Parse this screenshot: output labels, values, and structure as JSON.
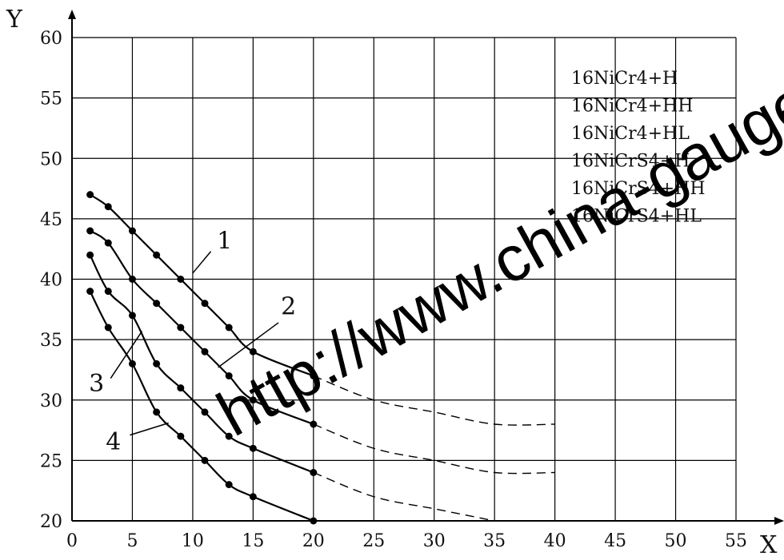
{
  "chart_data": {
    "type": "line",
    "title": "",
    "xlabel": "X",
    "ylabel": "Y",
    "xlim": [
      0,
      55
    ],
    "ylim": [
      20,
      60
    ],
    "xticks": [
      0,
      5,
      10,
      15,
      20,
      25,
      30,
      35,
      40,
      45,
      50,
      55
    ],
    "yticks": [
      20,
      25,
      30,
      35,
      40,
      45,
      50,
      55,
      60
    ],
    "grid": true,
    "legend": {
      "placement": "top-right",
      "entries": [
        "16NiCr4+H",
        "16NiCr4+HH",
        "16NiCr4+HL",
        "16NiCrS4+H",
        "16NiCrS4+HH",
        "16NiCrS4+HL"
      ]
    },
    "series": [
      {
        "label": "1",
        "points": [
          [
            1.5,
            47
          ],
          [
            3,
            46
          ],
          [
            5,
            44
          ],
          [
            7,
            42
          ],
          [
            9,
            40
          ],
          [
            11,
            38
          ],
          [
            13,
            36
          ],
          [
            15,
            34
          ],
          [
            20,
            32
          ]
        ],
        "extension": [
          [
            20,
            32
          ],
          [
            25,
            30
          ],
          [
            30,
            29
          ],
          [
            35,
            28
          ],
          [
            40,
            28
          ]
        ]
      },
      {
        "label": "2",
        "points": [
          [
            1.5,
            44
          ],
          [
            3,
            43
          ],
          [
            5,
            40
          ],
          [
            7,
            38
          ],
          [
            9,
            36
          ],
          [
            11,
            34
          ],
          [
            13,
            32
          ],
          [
            15,
            30
          ],
          [
            20,
            28
          ]
        ],
        "extension": [
          [
            20,
            28
          ],
          [
            25,
            26
          ],
          [
            30,
            25
          ],
          [
            35,
            24
          ],
          [
            40,
            24
          ]
        ]
      },
      {
        "label": "3",
        "points": [
          [
            1.5,
            42
          ],
          [
            3,
            39
          ],
          [
            5,
            37
          ],
          [
            7,
            33
          ],
          [
            9,
            31
          ],
          [
            11,
            29
          ],
          [
            13,
            27
          ],
          [
            15,
            26
          ],
          [
            20,
            24
          ]
        ],
        "extension": [
          [
            20,
            24
          ],
          [
            25,
            22
          ],
          [
            30,
            21
          ],
          [
            35,
            20
          ]
        ]
      },
      {
        "label": "4",
        "points": [
          [
            1.5,
            39
          ],
          [
            3,
            36
          ],
          [
            5,
            33
          ],
          [
            7,
            29
          ],
          [
            9,
            27
          ],
          [
            11,
            25
          ],
          [
            13,
            23
          ],
          [
            15,
            22
          ],
          [
            20,
            20
          ]
        ],
        "extension": []
      }
    ]
  },
  "watermark": "http://www.china-gauges"
}
